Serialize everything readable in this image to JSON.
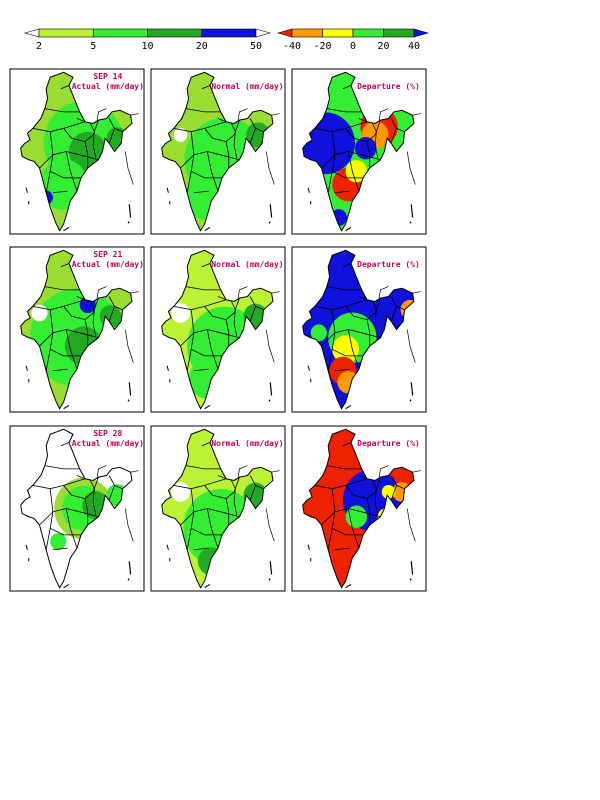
{
  "legend_actual": {
    "colors": [
      "#ffffff",
      "#bbf233",
      "#33ee33",
      "#22aa22",
      "#1111dd",
      "#ffffff"
    ],
    "ticks": [
      "2",
      "5",
      "10",
      "20",
      "50"
    ]
  },
  "legend_departure": {
    "colors": [
      "#ee2200",
      "#ff9900",
      "#ffff00",
      "#33ee33",
      "#22aa22",
      "#1111dd"
    ],
    "ticks": [
      "-40",
      "-20",
      "0",
      "20",
      "40"
    ]
  },
  "rows": [
    {
      "date": "SEP 14",
      "actual_title": "Actual (mm/day)",
      "normal_title": "Normal (mm/day)",
      "departure_title": "Departure (%)"
    },
    {
      "date": "SEP 21",
      "actual_title": "Actual (mm/day)",
      "normal_title": "Normal (mm/day)",
      "departure_title": "Departure (%)"
    },
    {
      "date": "SEP 28",
      "actual_title": "Actual (mm/day)",
      "normal_title": "Normal (mm/day)",
      "departure_title": "Departure (%)"
    }
  ],
  "panel_fills": {
    "actual": [
      {
        "base": "#99dd33",
        "blobs": [
          [
            "#33ee33",
            0.55,
            0.45,
            0.3
          ],
          [
            "#22aa22",
            0.58,
            0.5,
            0.14
          ],
          [
            "#22aa22",
            0.8,
            0.42,
            0.08
          ],
          [
            "#33ee33",
            0.4,
            0.7,
            0.18
          ],
          [
            "#1111dd",
            0.27,
            0.78,
            0.05
          ]
        ]
      },
      {
        "base": "#99dd33",
        "blobs": [
          [
            "#33ee33",
            0.5,
            0.55,
            0.35
          ],
          [
            "#22aa22",
            0.55,
            0.6,
            0.14
          ],
          [
            "#ffffff",
            0.22,
            0.4,
            0.06
          ],
          [
            "#1111dd",
            0.58,
            0.35,
            0.06
          ],
          [
            "#22aa22",
            0.75,
            0.42,
            0.08
          ]
        ]
      },
      {
        "base": "#ffffff",
        "blobs": [
          [
            "#99dd33",
            0.55,
            0.5,
            0.22
          ],
          [
            "#33ee33",
            0.55,
            0.5,
            0.16
          ],
          [
            "#22aa22",
            0.64,
            0.48,
            0.1
          ],
          [
            "#33ee33",
            0.8,
            0.42,
            0.08
          ],
          [
            "#33ee33",
            0.36,
            0.7,
            0.06
          ]
        ]
      }
    ],
    "normal": [
      {
        "base": "#99dd33",
        "blobs": [
          [
            "#33ee33",
            0.55,
            0.55,
            0.3
          ],
          [
            "#22aa22",
            0.8,
            0.4,
            0.09
          ],
          [
            "#ffffff",
            0.22,
            0.4,
            0.05
          ],
          [
            "#33ee33",
            0.42,
            0.78,
            0.16
          ]
        ]
      },
      {
        "base": "#bbf233",
        "blobs": [
          [
            "#33ee33",
            0.55,
            0.6,
            0.28
          ],
          [
            "#22aa22",
            0.78,
            0.42,
            0.09
          ],
          [
            "#ffffff",
            0.22,
            0.4,
            0.07
          ],
          [
            "#33ee33",
            0.42,
            0.8,
            0.14
          ]
        ]
      },
      {
        "base": "#bbf233",
        "blobs": [
          [
            "#33ee33",
            0.52,
            0.62,
            0.28
          ],
          [
            "#22aa22",
            0.78,
            0.42,
            0.09
          ],
          [
            "#ffffff",
            0.22,
            0.4,
            0.07
          ],
          [
            "#22aa22",
            0.45,
            0.82,
            0.1
          ]
        ]
      }
    ],
    "departure": [
      {
        "base": "#33ee33",
        "blobs": [
          [
            "#1111dd",
            0.25,
            0.45,
            0.22
          ],
          [
            "#ee2200",
            0.65,
            0.35,
            0.14
          ],
          [
            "#ff9900",
            0.62,
            0.4,
            0.1
          ],
          [
            "#ee2200",
            0.42,
            0.7,
            0.12
          ],
          [
            "#ffff00",
            0.48,
            0.62,
            0.08
          ],
          [
            "#1111dd",
            0.55,
            0.48,
            0.08
          ],
          [
            "#1111dd",
            0.35,
            0.9,
            0.06
          ]
        ]
      },
      {
        "base": "#1111dd",
        "blobs": [
          [
            "#33ee33",
            0.45,
            0.55,
            0.18
          ],
          [
            "#ffff00",
            0.4,
            0.62,
            0.1
          ],
          [
            "#ee2200",
            0.38,
            0.75,
            0.1
          ],
          [
            "#ff9900",
            0.42,
            0.82,
            0.08
          ],
          [
            "#ff9900",
            0.88,
            0.38,
            0.07
          ],
          [
            "#33ee33",
            0.2,
            0.52,
            0.06
          ]
        ]
      },
      {
        "base": "#ee2200",
        "blobs": [
          [
            "#1111dd",
            0.6,
            0.45,
            0.22
          ],
          [
            "#33ee33",
            0.48,
            0.55,
            0.08
          ],
          [
            "#ffff00",
            0.7,
            0.55,
            0.06
          ],
          [
            "#ff9900",
            0.82,
            0.4,
            0.07
          ],
          [
            "#ffff00",
            0.72,
            0.4,
            0.05
          ]
        ]
      }
    ]
  }
}
